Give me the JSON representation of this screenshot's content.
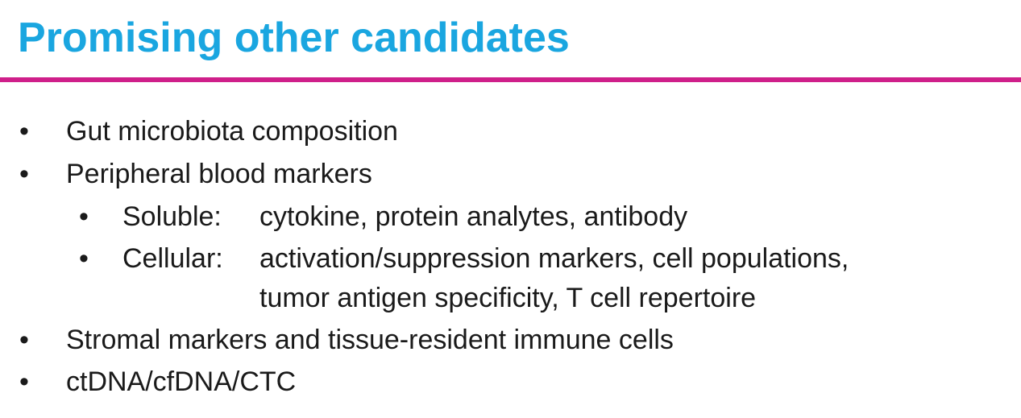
{
  "slide": {
    "title": "Promising other candidates",
    "accent_color": "#1aa6e0",
    "rule_color": "#cf1f8a"
  },
  "bullets": [
    {
      "marker": "•",
      "text": "Gut microbiota composition"
    },
    {
      "marker": "•",
      "text": "Peripheral blood markers"
    },
    {
      "marker": "•",
      "label": "Soluble:",
      "text": "cytokine, protein analytes, antibody"
    },
    {
      "marker": "•",
      "label": "Cellular:",
      "text": "activation/suppression markers, cell populations,"
    },
    {
      "text": "tumor antigen specificity, T cell repertoire"
    },
    {
      "marker": "•",
      "text": "Stromal markers and tissue-resident immune cells"
    },
    {
      "marker": "•",
      "text": "ctDNA/cfDNA/CTC"
    }
  ]
}
